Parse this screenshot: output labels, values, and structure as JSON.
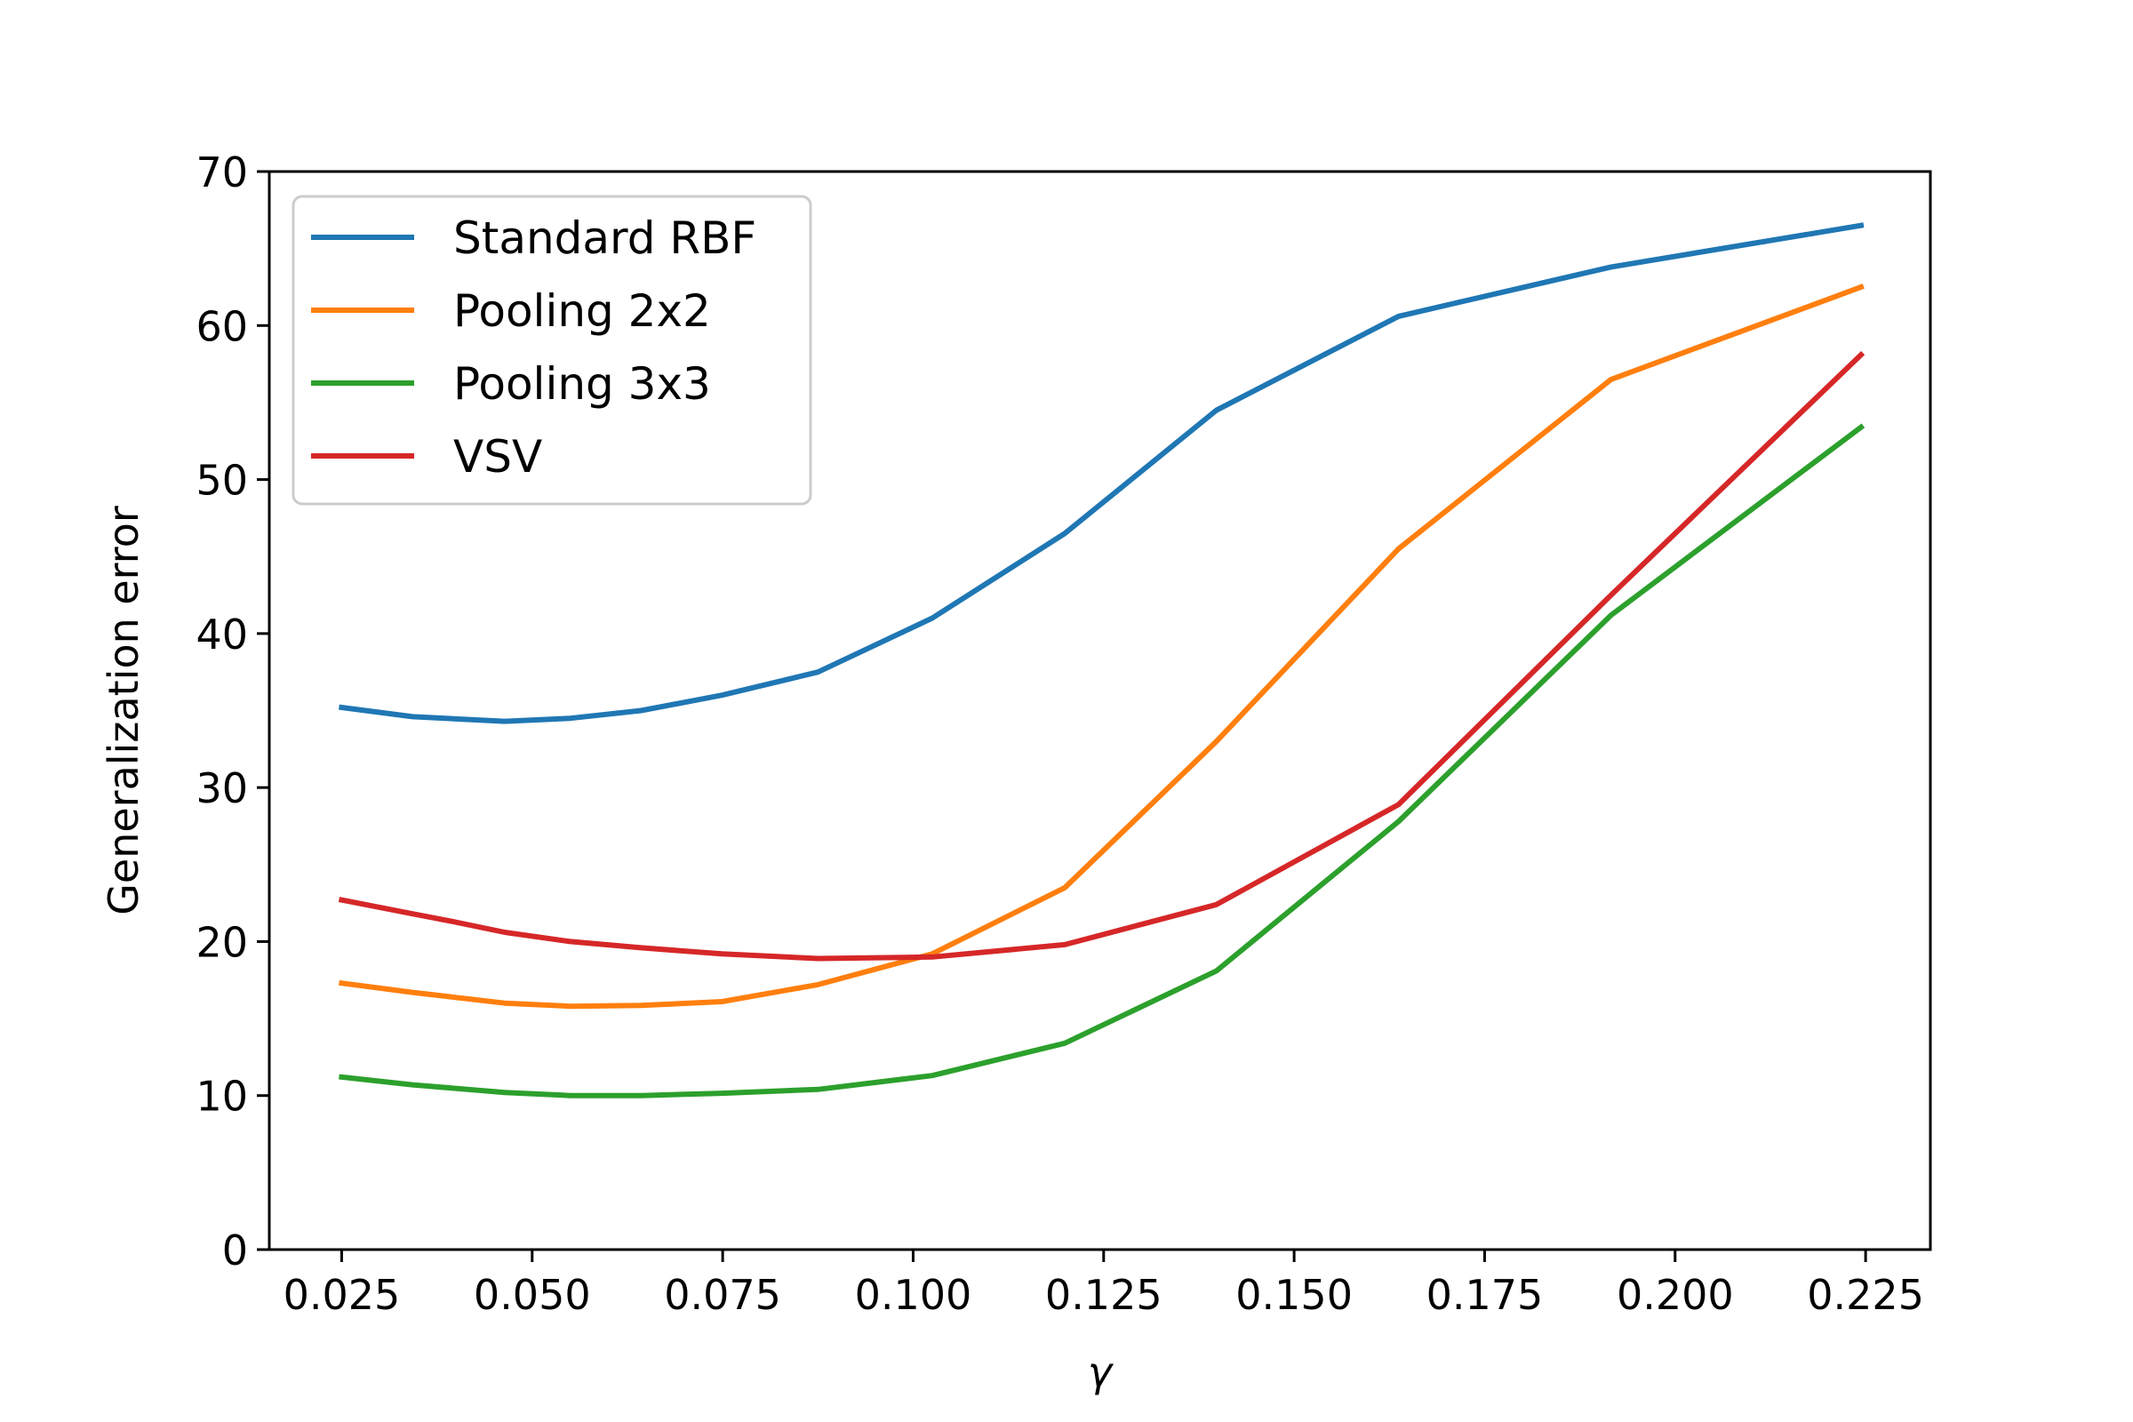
{
  "chart_data": {
    "type": "line",
    "title": "",
    "xlabel": "γ",
    "ylabel": "Generalization error",
    "xlim": [
      0.0155,
      0.2335
    ],
    "ylim": [
      0,
      70
    ],
    "xticks": [
      0.025,
      0.05,
      0.075,
      0.1,
      0.125,
      0.15,
      0.175,
      0.2,
      0.225
    ],
    "xtick_labels": [
      "0.025",
      "0.050",
      "0.075",
      "0.100",
      "0.125",
      "0.150",
      "0.175",
      "0.200",
      "0.225"
    ],
    "yticks": [
      0,
      10,
      20,
      30,
      40,
      50,
      60,
      70
    ],
    "ytick_labels": [
      "0",
      "10",
      "20",
      "30",
      "40",
      "50",
      "60",
      "70"
    ],
    "grid": false,
    "legend_position": "upper-left",
    "series": [
      {
        "name": "Standard RBF",
        "color": "#1f77b4",
        "x": [
          0.025,
          0.0343,
          0.0464,
          0.055,
          0.0643,
          0.0749,
          0.0875,
          0.1025,
          0.1199,
          0.1398,
          0.1637,
          0.1916,
          0.2244
        ],
        "y": [
          35.2,
          34.6,
          34.3,
          34.5,
          35.0,
          36.0,
          37.5,
          41.0,
          46.5,
          54.5,
          60.6,
          63.8,
          66.5
        ]
      },
      {
        "name": "Pooling 2x2",
        "color": "#ff7f0e",
        "x": [
          0.025,
          0.0343,
          0.0464,
          0.055,
          0.0643,
          0.0749,
          0.0875,
          0.1025,
          0.1199,
          0.1398,
          0.1637,
          0.1916,
          0.2244
        ],
        "y": [
          17.3,
          16.7,
          16.0,
          15.8,
          15.85,
          16.1,
          17.2,
          19.2,
          23.5,
          33.0,
          45.5,
          56.5,
          62.5
        ]
      },
      {
        "name": "Pooling 3x3",
        "color": "#2ca02c",
        "x": [
          0.025,
          0.0343,
          0.0464,
          0.055,
          0.0643,
          0.0749,
          0.0875,
          0.1025,
          0.1199,
          0.1398,
          0.1637,
          0.1916,
          0.2244
        ],
        "y": [
          11.2,
          10.7,
          10.2,
          10.0,
          10.0,
          10.15,
          10.4,
          11.3,
          13.4,
          18.1,
          27.8,
          41.2,
          53.4
        ]
      },
      {
        "name": "VSV",
        "color": "#d62728",
        "x": [
          0.025,
          0.0343,
          0.0396,
          0.0464,
          0.055,
          0.0643,
          0.0749,
          0.0875,
          0.1025,
          0.1199,
          0.1398,
          0.1637,
          0.1916,
          0.2244
        ],
        "y": [
          22.7,
          21.8,
          21.3,
          20.6,
          20.0,
          19.6,
          19.2,
          18.9,
          19.0,
          19.8,
          22.4,
          28.9,
          42.5,
          58.1
        ]
      }
    ]
  }
}
